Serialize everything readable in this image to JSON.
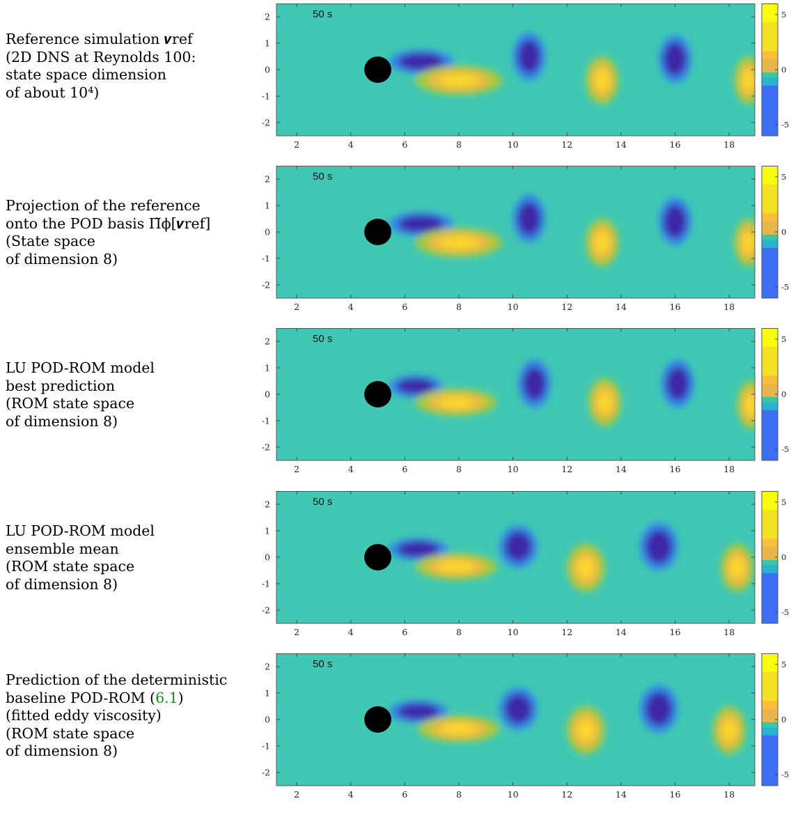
{
  "panels": [
    {
      "id": "reference",
      "caption": [
        "Reference simulation 𝒗ref",
        "(2D DNS at Reynolds 100:",
        "state space dimension",
        "of about 10⁴)"
      ],
      "time_label": "50 s",
      "vortices": [
        [
          6.6,
          0.3,
          1.2,
          0.45,
          -1
        ],
        [
          8.0,
          -0.4,
          1.6,
          0.55,
          1
        ],
        [
          10.6,
          0.5,
          0.6,
          0.9,
          -1
        ],
        [
          13.3,
          -0.4,
          0.6,
          0.9,
          1
        ],
        [
          16.0,
          0.4,
          0.6,
          0.9,
          -1
        ],
        [
          18.7,
          -0.4,
          0.5,
          0.9,
          1
        ]
      ]
    },
    {
      "id": "projection",
      "caption": [
        "Projection of the reference",
        "onto the POD basis Π̃ϕ[𝒗ref]",
        "(State space",
        "of dimension 8)"
      ],
      "time_label": "50 s",
      "vortices": [
        [
          6.6,
          0.3,
          1.2,
          0.45,
          -1
        ],
        [
          8.0,
          -0.4,
          1.6,
          0.55,
          1
        ],
        [
          10.6,
          0.5,
          0.6,
          0.9,
          -1
        ],
        [
          13.3,
          -0.4,
          0.6,
          0.9,
          1
        ],
        [
          16.0,
          0.4,
          0.6,
          0.9,
          -1
        ],
        [
          18.7,
          -0.4,
          0.5,
          0.9,
          1
        ]
      ]
    },
    {
      "id": "lu-best",
      "caption": [
        "LU POD-ROM model",
        "best prediction",
        "(ROM state space",
        "of dimension 8)"
      ],
      "time_label": "50 s",
      "vortices": [
        [
          6.4,
          0.3,
          1.0,
          0.42,
          -1
        ],
        [
          7.9,
          -0.3,
          1.5,
          0.5,
          1
        ],
        [
          10.8,
          0.4,
          0.6,
          0.9,
          -1
        ],
        [
          13.4,
          -0.3,
          0.6,
          0.9,
          1
        ],
        [
          16.1,
          0.4,
          0.6,
          0.9,
          -1
        ],
        [
          18.8,
          -0.4,
          0.5,
          0.9,
          1
        ]
      ]
    },
    {
      "id": "lu-mean",
      "caption": [
        "LU POD-ROM model",
        "ensemble mean",
        "(ROM state space",
        "of dimension 8)"
      ],
      "time_label": "50 s",
      "vortices": [
        [
          6.5,
          0.3,
          1.1,
          0.42,
          -1
        ],
        [
          7.9,
          -0.35,
          1.5,
          0.5,
          1
        ],
        [
          10.2,
          0.4,
          0.7,
          0.8,
          -1
        ],
        [
          12.7,
          -0.4,
          0.7,
          0.9,
          1
        ],
        [
          15.4,
          0.4,
          0.7,
          0.9,
          -1
        ],
        [
          18.3,
          -0.4,
          0.6,
          0.9,
          1
        ]
      ]
    },
    {
      "id": "baseline",
      "caption": [
        "Prediction of the deterministic",
        "baseline POD-ROM (6.1)",
        "(fitted eddy viscosity)",
        "(ROM state space",
        "of dimension 8)"
      ],
      "caption_ref": "6.1",
      "time_label": "50 s",
      "vortices": [
        [
          6.5,
          0.3,
          1.1,
          0.42,
          -1
        ],
        [
          8.0,
          -0.35,
          1.5,
          0.5,
          1
        ],
        [
          10.2,
          0.4,
          0.7,
          0.8,
          -1
        ],
        [
          12.7,
          -0.4,
          0.7,
          0.9,
          1
        ],
        [
          15.4,
          0.4,
          0.7,
          0.9,
          -1
        ],
        [
          18.0,
          -0.4,
          0.6,
          0.9,
          1
        ]
      ]
    }
  ],
  "axes": {
    "x_ticks": [
      "2",
      "4",
      "6",
      "8",
      "10",
      "12",
      "14",
      "16",
      "18"
    ],
    "y_ticks": [
      "2",
      "1",
      "0",
      "-1",
      "-2"
    ],
    "x_range": [
      1.25,
      18.95
    ],
    "y_range": [
      -2.5,
      2.5
    ]
  },
  "colorbar": {
    "ticks": [
      "5",
      "0",
      "-5"
    ],
    "range": [
      -6,
      6
    ],
    "colormap": "parula",
    "colors_top_to_bottom": [
      "#f9fb0e",
      "#f5e124",
      "#fbbe3b",
      "#e8b64b",
      "#3bc7a6",
      "#28b4d1",
      "#3c6ff6",
      "#3e26a8"
    ]
  },
  "cylinder": {
    "x": 5.0,
    "y": 0.0,
    "r": 0.5
  }
}
